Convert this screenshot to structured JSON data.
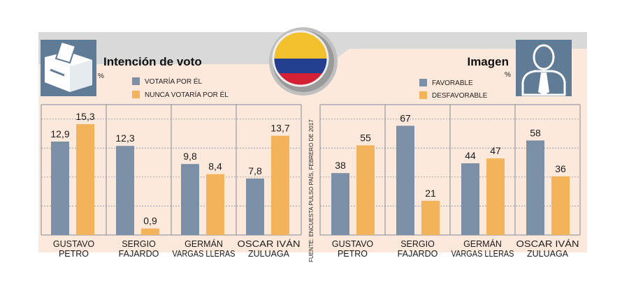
{
  "colors": {
    "background": "#fde9db",
    "header_band": "#d9d9d9",
    "favorable": "#7b90a6",
    "unfavorable": "#f2b35a",
    "icon_box": "#5f7b96",
    "grid": "#7f8c99",
    "text": "#1a1a1a"
  },
  "source_note": "FUENTE: ENCUESTA PULSO PAÍS, FEBRERO DE 2017",
  "chart_data": [
    {
      "type": "bar",
      "title": "Intención de voto",
      "unit": "%",
      "ylim": [
        0,
        18
      ],
      "categories": [
        [
          "GUSTAVO",
          "PETRO"
        ],
        [
          "SERGIO",
          "FAJARDO"
        ],
        [
          "GERMÁN",
          "VARGAS LLERAS"
        ],
        [
          "OSCAR IVÁN",
          "ZULUAGA"
        ]
      ],
      "series": [
        {
          "name": "VOTARÍA POR ÉL",
          "color": "#7b90a6",
          "values": [
            12.9,
            12.3,
            9.8,
            7.8
          ],
          "labels": [
            "12,9",
            "12,3",
            "9,8",
            "7,8"
          ]
        },
        {
          "name": "NUNCA VOTARÍA POR ÉL",
          "color": "#f2b35a",
          "values": [
            15.3,
            0.9,
            8.4,
            13.7
          ],
          "labels": [
            "15,3",
            "0,9",
            "8,4",
            "13,7"
          ]
        }
      ]
    },
    {
      "type": "bar",
      "title": "Imagen",
      "unit": "%",
      "ylim": [
        0,
        80
      ],
      "categories": [
        [
          "GUSTAVO",
          "PETRO"
        ],
        [
          "SERGIO",
          "FAJARDO"
        ],
        [
          "GERMÁN",
          "VARGAS LLERAS"
        ],
        [
          "OSCAR IVÁN",
          "ZULUAGA"
        ]
      ],
      "series": [
        {
          "name": "FAVORABLE",
          "color": "#7b90a6",
          "values": [
            38,
            67,
            44,
            58
          ],
          "labels": [
            "38",
            "67",
            "44",
            "58"
          ]
        },
        {
          "name": "DESFAVORABLE",
          "color": "#f2b35a",
          "values": [
            55,
            21,
            47,
            36
          ],
          "labels": [
            "55",
            "21",
            "47",
            "36"
          ]
        }
      ]
    }
  ]
}
